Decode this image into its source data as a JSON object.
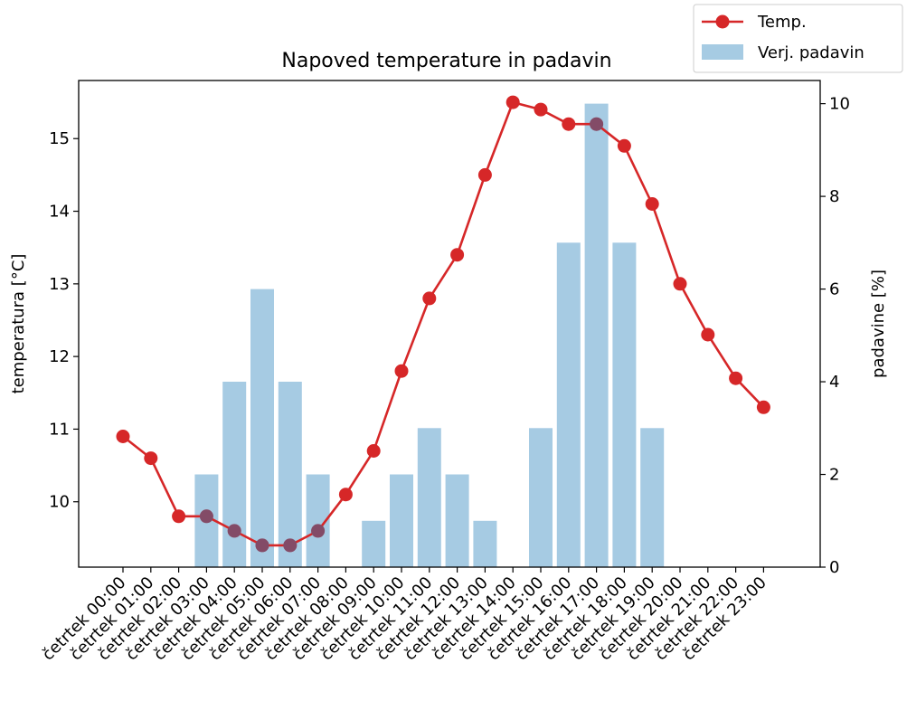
{
  "chart_data": {
    "type": "bar+line",
    "title": "Napoved temperature in padavin",
    "categories": [
      "četrtek 00:00",
      "četrtek 01:00",
      "četrtek 02:00",
      "četrtek 03:00",
      "četrtek 04:00",
      "četrtek 05:00",
      "četrtek 06:00",
      "četrtek 07:00",
      "četrtek 08:00",
      "četrtek 09:00",
      "četrtek 10:00",
      "četrtek 11:00",
      "četrtek 12:00",
      "četrtek 13:00",
      "četrtek 14:00",
      "četrtek 15:00",
      "četrtek 16:00",
      "četrtek 17:00",
      "četrtek 18:00",
      "četrtek 19:00",
      "četrtek 20:00",
      "četrtek 21:00",
      "četrtek 22:00",
      "četrtek 23:00"
    ],
    "series": [
      {
        "name": "Temp.",
        "type": "line",
        "axis": "left",
        "color": "#d62728",
        "values": [
          10.9,
          10.6,
          9.8,
          9.8,
          9.6,
          9.4,
          9.4,
          9.6,
          10.1,
          10.7,
          11.8,
          12.8,
          13.4,
          14.5,
          15.5,
          15.4,
          15.2,
          15.2,
          14.9,
          14.1,
          13.0,
          12.3,
          11.7,
          11.3
        ]
      },
      {
        "name": "Verj. padavin",
        "type": "bar",
        "axis": "right",
        "color": "#a6cbe3",
        "values": [
          0,
          0,
          0,
          2,
          4,
          6,
          4,
          2,
          0,
          1,
          2,
          3,
          2,
          1,
          0,
          3,
          7,
          10,
          7,
          3,
          0,
          0,
          0,
          0
        ]
      }
    ],
    "y_left": {
      "label": "temperatura [°C]",
      "color": "#d62728",
      "range": [
        9.1,
        15.8
      ],
      "ticks": [
        10,
        11,
        12,
        13,
        14,
        15
      ]
    },
    "y_right": {
      "label": "padavine [%]",
      "color": "#1f77b4",
      "range": [
        0,
        10.5
      ],
      "ticks": [
        0,
        2,
        4,
        6,
        8,
        10
      ]
    },
    "legend": {
      "placement": "top-right",
      "entries": [
        "Temp.",
        "Verj. padavin"
      ]
    },
    "grid": false
  }
}
